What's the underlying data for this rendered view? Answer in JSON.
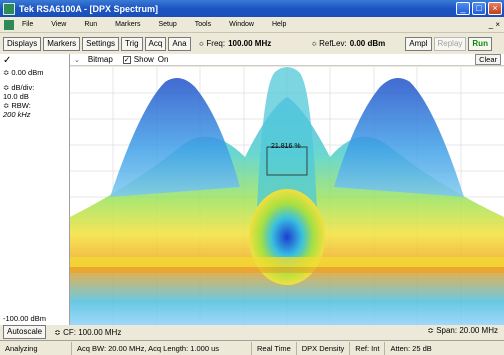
{
  "window": {
    "title": "Tek RSA6100A - [DPX Spectrum]"
  },
  "menu": {
    "items": [
      "File",
      "View",
      "Run",
      "Markers",
      "Setup",
      "Tools",
      "Window",
      "Help"
    ]
  },
  "toolbar": {
    "displays": "Displays",
    "markers": "Markers",
    "settings": "Settings",
    "trig": "Trig",
    "acq": "Acq",
    "ana": "Ana",
    "freq_label": "Freq:",
    "freq_value": "100.00 MHz",
    "reflev_label": "RefLev:",
    "reflev_value": "0.00 dBm",
    "ampl": "Ampl",
    "replay": "Replay",
    "run": "Run"
  },
  "left_panel": {
    "ref_level": "0.00 dBm",
    "db_div_label": "dB/div:",
    "db_div_value": "10.0 dB",
    "rbw_label": "RBW:",
    "rbw_value": "200 kHz",
    "bottom_level": "-100.00 dBm"
  },
  "subbar": {
    "bitmap": "Bitmap",
    "show": "Show",
    "on": "On",
    "clear": "Clear"
  },
  "display": {
    "marker_readout": "21.816 %"
  },
  "bottom": {
    "autoscale": "Autoscale",
    "cf": "CF: 100.00 MHz",
    "span": "Span: 20.00 MHz"
  },
  "status": {
    "state": "Analyzing",
    "acq": "Acq BW: 20.00 MHz, Acq Length: 1.000 us",
    "mode": "Real Time",
    "density": "DPX Density",
    "ref": "Ref: Int",
    "atten": "Atten: 25 dB"
  },
  "colors": {
    "titlebar": "#1c54c4",
    "background": "#ece9d8",
    "run": "#0a8a0a"
  }
}
